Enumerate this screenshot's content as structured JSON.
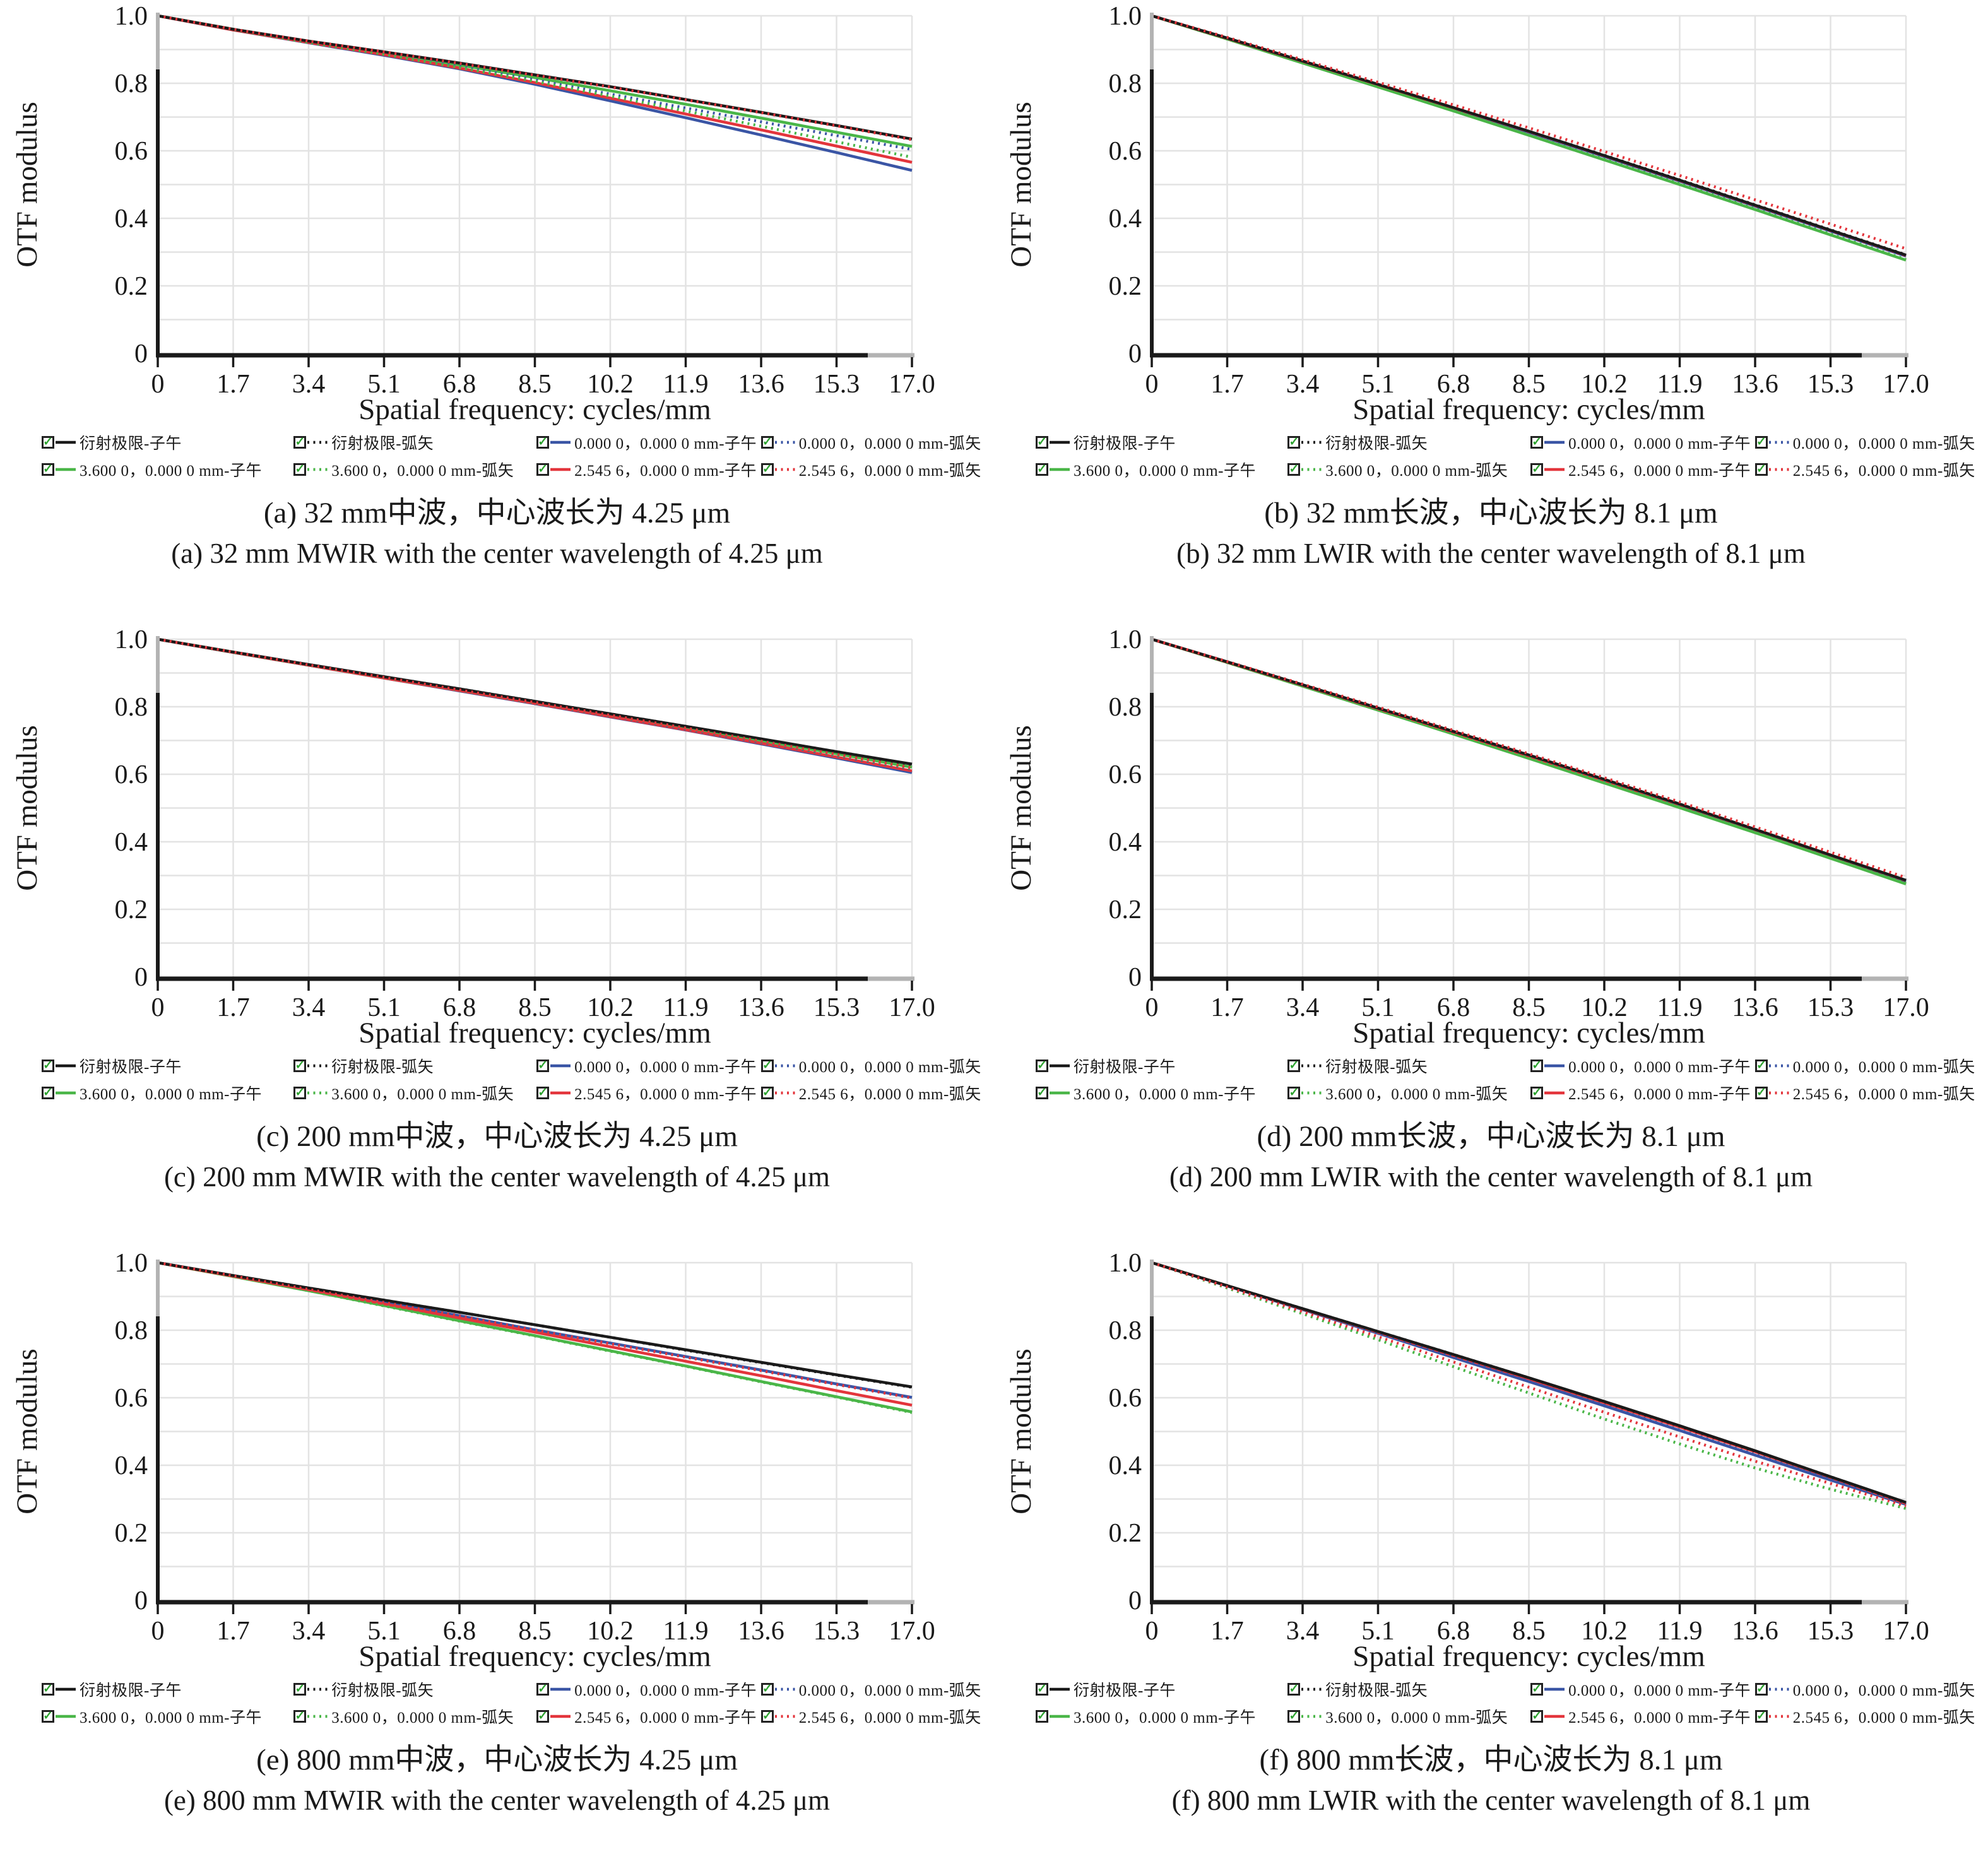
{
  "colors": {
    "black": "#1a1a1a",
    "blue": "#3a55a5",
    "green": "#4ab648",
    "red": "#e3353c",
    "grid": "#e3e3e3",
    "axis": "#1a1a1a",
    "axis_cap_gray": "#b3b3b3",
    "checkbox_check": "#2ea330"
  },
  "legend_entries": [
    {
      "label": "衍射极限-子午",
      "color": "black",
      "style": "solid"
    },
    {
      "label": "衍射极限-弧矢",
      "color": "black",
      "style": "dotted"
    },
    {
      "label": "0.000 0，0.000 0 mm-子午",
      "color": "blue",
      "style": "solid"
    },
    {
      "label": "0.000 0，0.000 0 mm-弧矢",
      "color": "blue",
      "style": "dotted"
    },
    {
      "label": "3.600 0，0.000 0 mm-子午",
      "color": "green",
      "style": "solid"
    },
    {
      "label": "3.600 0，0.000 0 mm-弧矢",
      "color": "green",
      "style": "dotted"
    },
    {
      "label": "2.545 6，0.000 0 mm-子午",
      "color": "red",
      "style": "solid"
    },
    {
      "label": "2.545 6，0.000 0 mm-弧矢",
      "color": "red",
      "style": "dotted"
    }
  ],
  "chart_data": [
    {
      "id": "a",
      "type": "line",
      "caption_zh": "(a) 32 mm中波，中心波长为 4.25 μm",
      "caption_en": "(a) 32 mm MWIR with the center wavelength of 4.25 μm",
      "xlabel": "Spatial frequency: cycles/mm",
      "ylabel": "OTF modulus",
      "xlim": [
        0,
        17
      ],
      "ylim": [
        0,
        1
      ],
      "grid": true,
      "legend_position": "below",
      "xticks": [
        "0",
        "1.7",
        "3.4",
        "5.1",
        "6.8",
        "8.5",
        "10.2",
        "11.9",
        "13.6",
        "15.3",
        "17.0"
      ],
      "yticks": [
        "0",
        "0.2",
        "0.4",
        "0.6",
        "0.8",
        "1.0"
      ],
      "x": [
        0,
        1.7,
        3.4,
        5.1,
        6.8,
        8.5,
        10.2,
        11.9,
        13.6,
        15.3,
        17
      ],
      "series_values": [
        [
          1.0,
          0.96,
          0.925,
          0.893,
          0.86,
          0.825,
          0.79,
          0.752,
          0.714,
          0.675,
          0.635
        ],
        [
          1.0,
          0.96,
          0.925,
          0.893,
          0.86,
          0.825,
          0.79,
          0.752,
          0.714,
          0.675,
          0.634
        ],
        [
          1.0,
          0.958,
          0.92,
          0.883,
          0.843,
          0.797,
          0.748,
          0.698,
          0.647,
          0.595,
          0.542
        ],
        [
          1.0,
          0.959,
          0.922,
          0.888,
          0.85,
          0.81,
          0.768,
          0.727,
          0.686,
          0.645,
          0.604
        ],
        [
          1.0,
          0.96,
          0.923,
          0.89,
          0.854,
          0.817,
          0.778,
          0.738,
          0.697,
          0.655,
          0.613
        ],
        [
          1.0,
          0.959,
          0.921,
          0.886,
          0.847,
          0.806,
          0.762,
          0.718,
          0.673,
          0.627,
          0.581
        ],
        [
          1.0,
          0.958,
          0.921,
          0.885,
          0.845,
          0.802,
          0.756,
          0.709,
          0.662,
          0.614,
          0.566
        ],
        [
          1.0,
          0.96,
          0.925,
          0.893,
          0.859,
          0.824,
          0.789,
          0.751,
          0.713,
          0.674,
          0.633
        ]
      ]
    },
    {
      "id": "b",
      "type": "line",
      "caption_zh": "(b) 32 mm长波，中心波长为 8.1 μm",
      "caption_en": "(b) 32 mm LWIR with the center wavelength of 8.1 μm",
      "xlabel": "Spatial frequency: cycles/mm",
      "ylabel": "OTF modulus",
      "xlim": [
        0,
        17
      ],
      "ylim": [
        0,
        1
      ],
      "grid": true,
      "legend_position": "below",
      "xticks": [
        "0",
        "1.7",
        "3.4",
        "5.1",
        "6.8",
        "8.5",
        "10.2",
        "11.9",
        "13.6",
        "15.3",
        "17.0"
      ],
      "yticks": [
        "0",
        "0.2",
        "0.4",
        "0.6",
        "0.8",
        "1.0"
      ],
      "x": [
        0,
        1.7,
        3.4,
        5.1,
        6.8,
        8.5,
        10.2,
        11.9,
        13.6,
        15.3,
        17
      ],
      "series_values": [
        [
          1.0,
          0.934,
          0.866,
          0.797,
          0.728,
          0.658,
          0.586,
          0.513,
          0.439,
          0.365,
          0.291
        ],
        [
          1.0,
          0.934,
          0.866,
          0.797,
          0.728,
          0.658,
          0.587,
          0.514,
          0.44,
          0.366,
          0.292
        ],
        [
          1.0,
          0.933,
          0.864,
          0.795,
          0.725,
          0.655,
          0.583,
          0.51,
          0.436,
          0.362,
          0.288
        ],
        [
          1.0,
          0.933,
          0.864,
          0.795,
          0.726,
          0.656,
          0.584,
          0.511,
          0.437,
          0.363,
          0.289
        ],
        [
          1.0,
          0.931,
          0.86,
          0.789,
          0.718,
          0.646,
          0.573,
          0.5,
          0.426,
          0.351,
          0.276
        ],
        [
          1.0,
          0.931,
          0.861,
          0.79,
          0.719,
          0.647,
          0.575,
          0.502,
          0.428,
          0.353,
          0.278
        ],
        [
          1.0,
          0.933,
          0.865,
          0.796,
          0.727,
          0.657,
          0.585,
          0.512,
          0.438,
          0.364,
          0.29
        ],
        [
          1.0,
          0.936,
          0.87,
          0.803,
          0.736,
          0.668,
          0.598,
          0.527,
          0.455,
          0.383,
          0.31
        ]
      ]
    },
    {
      "id": "c",
      "type": "line",
      "caption_zh": "(c) 200 mm中波，中心波长为 4.25 μm",
      "caption_en": "(c) 200 mm MWIR with the center wavelength of 4.25 μm",
      "xlabel": "Spatial frequency: cycles/mm",
      "ylabel": "OTF modulus",
      "xlim": [
        0,
        17
      ],
      "ylim": [
        0,
        1
      ],
      "grid": true,
      "legend_position": "below",
      "xticks": [
        "0",
        "1.7",
        "3.4",
        "5.1",
        "6.8",
        "8.5",
        "10.2",
        "11.9",
        "13.6",
        "15.3",
        "17.0"
      ],
      "yticks": [
        "0",
        "0.2",
        "0.4",
        "0.6",
        "0.8",
        "1.0"
      ],
      "x": [
        0,
        1.7,
        3.4,
        5.1,
        6.8,
        8.5,
        10.2,
        11.9,
        13.6,
        15.3,
        17
      ],
      "series_values": [
        [
          1.0,
          0.962,
          0.925,
          0.889,
          0.853,
          0.816,
          0.779,
          0.742,
          0.705,
          0.667,
          0.63
        ],
        [
          1.0,
          0.962,
          0.925,
          0.889,
          0.853,
          0.816,
          0.779,
          0.742,
          0.704,
          0.667,
          0.629
        ],
        [
          1.0,
          0.961,
          0.923,
          0.885,
          0.847,
          0.809,
          0.77,
          0.731,
          0.69,
          0.648,
          0.605
        ],
        [
          1.0,
          0.961,
          0.923,
          0.886,
          0.849,
          0.811,
          0.773,
          0.734,
          0.695,
          0.655,
          0.615
        ],
        [
          1.0,
          0.962,
          0.924,
          0.887,
          0.851,
          0.814,
          0.776,
          0.738,
          0.7,
          0.661,
          0.621
        ],
        [
          1.0,
          0.961,
          0.923,
          0.886,
          0.849,
          0.812,
          0.774,
          0.736,
          0.697,
          0.657,
          0.617
        ],
        [
          1.0,
          0.961,
          0.923,
          0.885,
          0.848,
          0.81,
          0.771,
          0.732,
          0.692,
          0.651,
          0.61
        ],
        [
          1.0,
          0.962,
          0.924,
          0.887,
          0.85,
          0.813,
          0.775,
          0.737,
          0.698,
          0.659,
          0.619
        ]
      ]
    },
    {
      "id": "d",
      "type": "line",
      "caption_zh": "(d) 200 mm长波，中心波长为 8.1 μm",
      "caption_en": "(d) 200 mm LWIR with the center wavelength of 8.1 μm",
      "xlabel": "Spatial frequency: cycles/mm",
      "ylabel": "OTF modulus",
      "xlim": [
        0,
        17
      ],
      "ylim": [
        0,
        1
      ],
      "grid": true,
      "legend_position": "below",
      "xticks": [
        "0",
        "1.7",
        "3.4",
        "5.1",
        "6.8",
        "8.5",
        "10.2",
        "11.9",
        "13.6",
        "15.3",
        "17.0"
      ],
      "yticks": [
        "0",
        "0.2",
        "0.4",
        "0.6",
        "0.8",
        "1.0"
      ],
      "x": [
        0,
        1.7,
        3.4,
        5.1,
        6.8,
        8.5,
        10.2,
        11.9,
        13.6,
        15.3,
        17
      ],
      "series_values": [
        [
          1.0,
          0.933,
          0.865,
          0.796,
          0.727,
          0.657,
          0.585,
          0.512,
          0.437,
          0.361,
          0.286
        ],
        [
          1.0,
          0.933,
          0.865,
          0.796,
          0.727,
          0.657,
          0.586,
          0.513,
          0.438,
          0.362,
          0.287
        ],
        [
          1.0,
          0.932,
          0.863,
          0.794,
          0.724,
          0.653,
          0.581,
          0.508,
          0.434,
          0.358,
          0.283
        ],
        [
          1.0,
          0.932,
          0.864,
          0.795,
          0.725,
          0.654,
          0.582,
          0.509,
          0.435,
          0.359,
          0.284
        ],
        [
          1.0,
          0.931,
          0.861,
          0.79,
          0.719,
          0.647,
          0.574,
          0.501,
          0.427,
          0.351,
          0.275
        ],
        [
          1.0,
          0.931,
          0.861,
          0.791,
          0.72,
          0.648,
          0.575,
          0.502,
          0.428,
          0.352,
          0.277
        ],
        [
          1.0,
          0.932,
          0.864,
          0.794,
          0.724,
          0.654,
          0.582,
          0.51,
          0.436,
          0.36,
          0.285
        ],
        [
          1.0,
          0.934,
          0.867,
          0.799,
          0.73,
          0.661,
          0.59,
          0.518,
          0.444,
          0.369,
          0.294
        ]
      ]
    },
    {
      "id": "e",
      "type": "line",
      "caption_zh": "(e) 800 mm中波，中心波长为 4.25 μm",
      "caption_en": "(e) 800 mm MWIR with the center wavelength of 4.25 μm",
      "xlabel": "Spatial frequency: cycles/mm",
      "ylabel": "OTF modulus",
      "xlim": [
        0,
        17
      ],
      "ylim": [
        0,
        1
      ],
      "grid": true,
      "legend_position": "below",
      "xticks": [
        "0",
        "1.7",
        "3.4",
        "5.1",
        "6.8",
        "8.5",
        "10.2",
        "11.9",
        "13.6",
        "15.3",
        "17.0"
      ],
      "yticks": [
        "0",
        "0.2",
        "0.4",
        "0.6",
        "0.8",
        "1.0"
      ],
      "x": [
        0,
        1.7,
        3.4,
        5.1,
        6.8,
        8.5,
        10.2,
        11.9,
        13.6,
        15.3,
        17
      ],
      "series_values": [
        [
          1.0,
          0.962,
          0.925,
          0.889,
          0.853,
          0.816,
          0.779,
          0.742,
          0.705,
          0.668,
          0.632
        ],
        [
          1.0,
          0.962,
          0.925,
          0.889,
          0.853,
          0.816,
          0.779,
          0.741,
          0.704,
          0.667,
          0.631
        ],
        [
          1.0,
          0.961,
          0.922,
          0.883,
          0.843,
          0.801,
          0.762,
          0.722,
          0.682,
          0.641,
          0.601
        ],
        [
          1.0,
          0.961,
          0.922,
          0.883,
          0.843,
          0.801,
          0.761,
          0.721,
          0.681,
          0.64,
          0.6
        ],
        [
          1.0,
          0.959,
          0.917,
          0.873,
          0.828,
          0.784,
          0.739,
          0.694,
          0.648,
          0.603,
          0.558
        ],
        [
          1.0,
          0.959,
          0.917,
          0.872,
          0.827,
          0.783,
          0.738,
          0.693,
          0.647,
          0.602,
          0.556
        ],
        [
          1.0,
          0.96,
          0.92,
          0.878,
          0.836,
          0.794,
          0.751,
          0.708,
          0.665,
          0.621,
          0.578
        ],
        [
          1.0,
          0.961,
          0.921,
          0.882,
          0.842,
          0.8,
          0.76,
          0.72,
          0.68,
          0.639,
          0.599
        ]
      ]
    },
    {
      "id": "f",
      "type": "line",
      "caption_zh": "(f) 800 mm长波，中心波长为 8.1 μm",
      "caption_en": "(f) 800 mm LWIR with the center wavelength of 8.1 μm",
      "xlabel": "Spatial frequency: cycles/mm",
      "ylabel": "OTF modulus",
      "xlim": [
        0,
        17
      ],
      "ylim": [
        0,
        1
      ],
      "grid": true,
      "legend_position": "below",
      "xticks": [
        "0",
        "1.7",
        "3.4",
        "5.1",
        "6.8",
        "8.5",
        "10.2",
        "11.9",
        "13.6",
        "15.3",
        "17.0"
      ],
      "yticks": [
        "0",
        "0.2",
        "0.4",
        "0.6",
        "0.8",
        "1.0"
      ],
      "x": [
        0,
        1.7,
        3.4,
        5.1,
        6.8,
        8.5,
        10.2,
        11.9,
        13.6,
        15.3,
        17
      ],
      "series_values": [
        [
          1.0,
          0.932,
          0.864,
          0.796,
          0.728,
          0.659,
          0.589,
          0.517,
          0.443,
          0.366,
          0.29
        ],
        [
          1.0,
          0.932,
          0.864,
          0.796,
          0.728,
          0.659,
          0.588,
          0.516,
          0.442,
          0.366,
          0.289
        ],
        [
          1.0,
          0.931,
          0.861,
          0.791,
          0.719,
          0.648,
          0.576,
          0.503,
          0.43,
          0.356,
          0.284
        ],
        [
          1.0,
          0.931,
          0.861,
          0.791,
          0.72,
          0.648,
          0.577,
          0.504,
          0.431,
          0.357,
          0.285
        ],
        [
          1.0,
          0.932,
          0.863,
          0.795,
          0.726,
          0.657,
          0.587,
          0.515,
          0.441,
          0.365,
          0.288
        ],
        [
          1.0,
          0.925,
          0.849,
          0.772,
          0.692,
          0.614,
          0.537,
          0.463,
          0.392,
          0.329,
          0.272
        ],
        [
          1.0,
          0.932,
          0.863,
          0.794,
          0.725,
          0.656,
          0.585,
          0.513,
          0.44,
          0.364,
          0.287
        ],
        [
          1.0,
          0.928,
          0.855,
          0.781,
          0.706,
          0.631,
          0.557,
          0.484,
          0.412,
          0.346,
          0.279
        ]
      ]
    }
  ]
}
